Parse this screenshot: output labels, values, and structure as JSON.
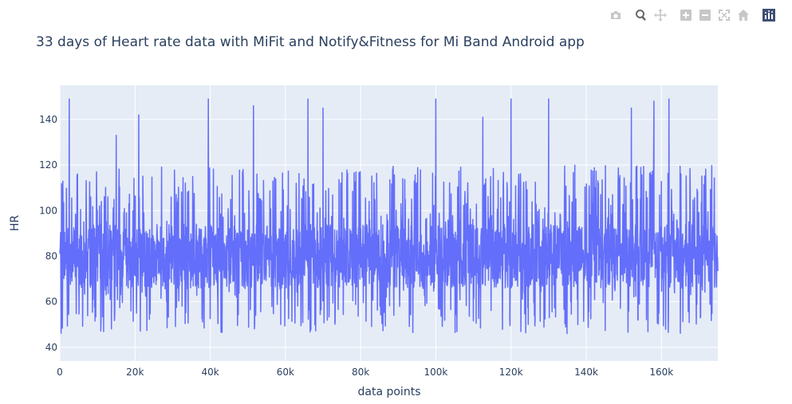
{
  "modebar": {
    "buttons": [
      {
        "name": "camera-icon",
        "label": "Download plot as a png"
      },
      {
        "name": "zoom-icon",
        "label": "Zoom"
      },
      {
        "name": "pan-icon",
        "label": "Pan"
      },
      {
        "name": "zoom-in-icon",
        "label": "Zoom in"
      },
      {
        "name": "zoom-out-icon",
        "label": "Zoom out"
      },
      {
        "name": "autoscale-icon",
        "label": "Autoscale"
      },
      {
        "name": "home-icon",
        "label": "Reset axes"
      },
      {
        "name": "plotly-logo-icon",
        "label": "Produced with Plotly"
      }
    ]
  },
  "colors": {
    "line": "#636efa",
    "plot_bg": "#e5ecf6",
    "grid": "#ffffff",
    "text": "#2a3f5f"
  },
  "chart_data": {
    "type": "line",
    "title": "33 days of Heart rate data with MiFit and Notify&Fitness for Mi Band Android app",
    "xlabel": "data points",
    "ylabel": "HR",
    "xlim": [
      0,
      175000
    ],
    "ylim": [
      34,
      155
    ],
    "xticks": [
      0,
      20000,
      40000,
      60000,
      80000,
      100000,
      120000,
      140000,
      160000
    ],
    "xtick_labels": [
      "0",
      "20k",
      "40k",
      "60k",
      "80k",
      "100k",
      "120k",
      "140k",
      "160k"
    ],
    "yticks": [
      40,
      60,
      80,
      100,
      120,
      140
    ],
    "ytick_labels": [
      "40",
      "60",
      "80",
      "100",
      "120",
      "140"
    ],
    "grid": true,
    "legend": "none",
    "series": [
      {
        "x_start": 0,
        "x_end": 175000,
        "baseline_hr": 80,
        "min_hr": 40,
        "max_hr": 149,
        "notable_peaks": [
          [
            2500,
            149
          ],
          [
            15000,
            133
          ],
          [
            21000,
            142
          ],
          [
            39500,
            149
          ],
          [
            51500,
            146
          ],
          [
            66000,
            149
          ],
          [
            70000,
            145
          ],
          [
            100000,
            149
          ],
          [
            112500,
            141
          ],
          [
            120000,
            149
          ],
          [
            130000,
            149
          ],
          [
            152000,
            145
          ],
          [
            158000,
            148
          ],
          [
            162000,
            149
          ]
        ]
      }
    ]
  }
}
